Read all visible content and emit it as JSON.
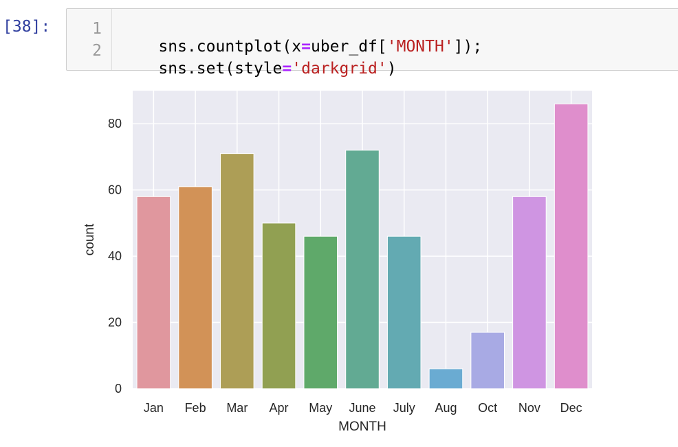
{
  "cell": {
    "prompt": "[38]:",
    "lines": [
      {
        "number": "1",
        "tokens": [
          {
            "text": "sns.countplot(x",
            "kind": "p"
          },
          {
            "text": "=",
            "kind": "op"
          },
          {
            "text": "uber_df[",
            "kind": "p"
          },
          {
            "text": "'MONTH'",
            "kind": "str"
          },
          {
            "text": "]);",
            "kind": "p"
          }
        ]
      },
      {
        "number": "2",
        "tokens": [
          {
            "text": "sns.set(style",
            "kind": "p"
          },
          {
            "text": "=",
            "kind": "op"
          },
          {
            "text": "'darkgrid'",
            "kind": "str"
          },
          {
            "text": ")",
            "kind": "p"
          }
        ]
      }
    ]
  },
  "chart_data": {
    "type": "bar",
    "categories": [
      "Jan",
      "Feb",
      "Mar",
      "Apr",
      "May",
      "June",
      "July",
      "Aug",
      "Oct",
      "Nov",
      "Dec"
    ],
    "values": [
      58,
      61,
      71,
      50,
      46,
      72,
      46,
      6,
      17,
      58,
      86
    ],
    "colors": [
      "#e0979e",
      "#d29257",
      "#ad9e56",
      "#91a052",
      "#5fa96a",
      "#62aa93",
      "#63aab2",
      "#6aabd2",
      "#a8aae4",
      "#cf95e2",
      "#df8ecc"
    ],
    "title": "",
    "xlabel": "MONTH",
    "ylabel": "count",
    "ylim": [
      0,
      90
    ],
    "yticks": [
      0,
      20,
      40,
      60,
      80
    ],
    "grid": true,
    "background": "#eaeaf2",
    "grid_color": "#ffffff"
  }
}
